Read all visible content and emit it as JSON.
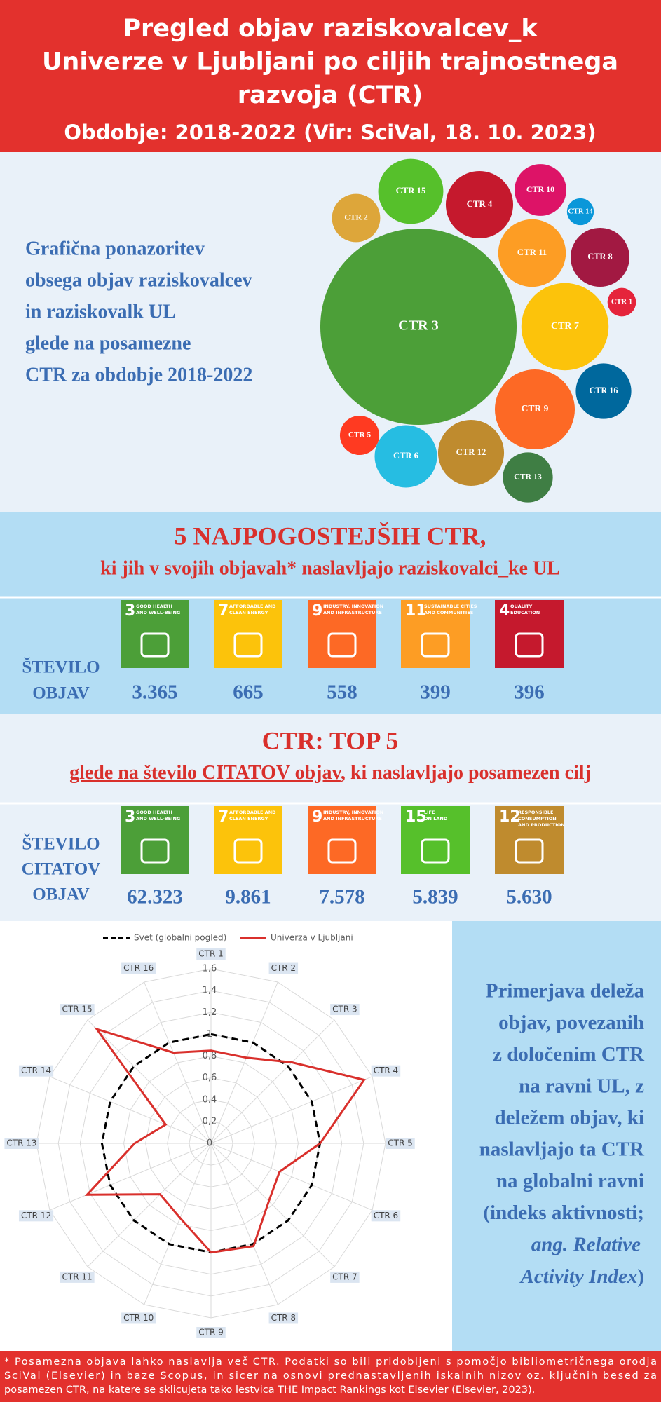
{
  "header": {
    "title_lines": [
      "Pregled objav raziskovalcev_k",
      "Univerze v Ljubljani po ciljih trajnostnega",
      "razvoja (CTR)"
    ],
    "subtitle": "Obdobje: 2018-2022 (Vir: SciVal, 18. 10. 2023)"
  },
  "bubble_text": [
    "Grafična ponazoritev",
    "obsega objav raziskovalcev",
    "in raziskovalk UL",
    "glede na posamezne",
    "CTR za obdobje 2018-2022"
  ],
  "chart_data": [
    {
      "type": "bubble",
      "categories": [
        "CTR 1",
        "CTR 2",
        "CTR 3",
        "CTR 4",
        "CTR 5",
        "CTR 6",
        "CTR 7",
        "CTR 8",
        "CTR 9",
        "CTR 10",
        "CTR 11",
        "CTR 12",
        "CTR 13",
        "CTR 14",
        "CTR 15",
        "CTR 16"
      ],
      "values": [
        71,
        203,
        3365,
        396,
        135,
        340,
        665,
        303,
        558,
        234,
        399,
        380,
        218,
        63,
        370,
        269
      ],
      "colors": [
        "#e5243b",
        "#dda63a",
        "#4c9f38",
        "#c5192d",
        "#ff3a21",
        "#26bde2",
        "#fcc30b",
        "#a21942",
        "#fd6925",
        "#dd1367",
        "#fd9d24",
        "#bf8b2e",
        "#3f7e44",
        "#0a97d9",
        "#56c02b",
        "#00689d"
      ]
    },
    {
      "type": "radar",
      "categories": [
        "CTR 1",
        "CTR 2",
        "CTR 3",
        "CTR 4",
        "CTR 5",
        "CTR 6",
        "CTR 7",
        "CTR 8",
        "CTR 9",
        "CTR 10",
        "CTR 11",
        "CTR 12",
        "CTR 13",
        "CTR 14",
        "CTR 15",
        "CTR 16"
      ],
      "ylim": [
        0,
        1.6
      ],
      "yticks": [
        0,
        {
          "value": 0.2,
          "label": "0,2"
        },
        {
          "value": 0.4,
          "label": "0,4"
        },
        {
          "value": 0.6,
          "label": "0,6"
        },
        {
          "value": 0.8,
          "label": "0,8"
        },
        1,
        {
          "value": 1.2,
          "label": "1,2"
        },
        {
          "value": 1.4,
          "label": "1,4"
        },
        {
          "value": 1.6,
          "label": "1,6"
        }
      ],
      "grid": true,
      "legend": "top",
      "series": [
        {
          "name": "Svet (globalni pogled)",
          "color": "#000000",
          "dashed": true,
          "values": [
            1,
            1,
            1,
            1,
            1,
            1,
            1,
            1,
            1,
            1,
            1,
            1,
            1,
            1,
            1,
            1
          ]
        },
        {
          "name": "Univerza v Ljubljani",
          "color": "#d9302c",
          "dashed": false,
          "values": [
            0.85,
            0.85,
            1.05,
            1.52,
            1.0,
            0.68,
            0.75,
            1.02,
            1.0,
            0.74,
            0.66,
            1.23,
            0.7,
            0.45,
            1.48,
            0.9
          ]
        }
      ]
    }
  ],
  "top_publications": {
    "heading": "5 NAJPOGOSTEJŠIH CTR,",
    "subheading": "ki jih v svojih objavah* naslavljajo raziskovalci_ke UL",
    "row_label": [
      "ŠTEVILO",
      "OBJAV"
    ],
    "goals": [
      {
        "number": "3",
        "name": [
          "GOOD HEALTH",
          "AND WELL-BEING"
        ],
        "color": "#4c9f38",
        "count": "3.365"
      },
      {
        "number": "7",
        "name": [
          "AFFORDABLE AND",
          "CLEAN ENERGY"
        ],
        "color": "#fcc30b",
        "count": "665"
      },
      {
        "number": "9",
        "name": [
          "INDUSTRY, INNOVATION",
          "AND INFRASTRUCTURE"
        ],
        "color": "#fd6925",
        "count": "558"
      },
      {
        "number": "11",
        "name": [
          "SUSTAINABLE CITIES",
          "AND COMMUNITIES"
        ],
        "color": "#fd9d24",
        "count": "399"
      },
      {
        "number": "4",
        "name": [
          "QUALITY",
          "EDUCATION"
        ],
        "color": "#c5192d",
        "count": "396"
      }
    ]
  },
  "top_citations": {
    "heading": "CTR: TOP 5",
    "subheading_underlined": "glede na število CITATOV objav",
    "subheading_rest": ", ki naslavljajo posamezen cilj",
    "row_label": [
      "ŠTEVILO",
      "CITATOV",
      "OBJAV"
    ],
    "goals": [
      {
        "number": "3",
        "name": [
          "GOOD HEALTH",
          "AND WELL-BEING"
        ],
        "color": "#4c9f38",
        "count": "62.323"
      },
      {
        "number": "7",
        "name": [
          "AFFORDABLE AND",
          "CLEAN ENERGY"
        ],
        "color": "#fcc30b",
        "count": "9.861"
      },
      {
        "number": "9",
        "name": [
          "INDUSTRY, INNOVATION",
          "AND INFRASTRUCTURE"
        ],
        "color": "#fd6925",
        "count": "7.578"
      },
      {
        "number": "15",
        "name": [
          "LIFE",
          "ON LAND"
        ],
        "color": "#56c02b",
        "count": "5.839"
      },
      {
        "number": "12",
        "name": [
          "RESPONSIBLE",
          "CONSUMPTION",
          "AND PRODUCTION"
        ],
        "color": "#bf8b2e",
        "count": "5.630"
      }
    ]
  },
  "comparison_text": {
    "lines": [
      "Primerjava deleža",
      "objav, povezanih",
      "z določenim CTR",
      "na ravni UL, z",
      "deležem objav, ki",
      "naslavljajo ta CTR",
      "na globalni ravni",
      "(indeks aktivnosti;"
    ],
    "italic_lines": [
      "ang. Relative",
      "Activity Index"
    ],
    "closing": ")"
  },
  "footnote": [
    "* Posamezna objava lahko naslavlja več CTR. Podatki so bili pridobljeni s pomočjo bibliometričnega orodja",
    "SciVal (Elsevier) in baze Scopus, in sicer na osnovi prednastavljenih iskalnih nizov oz. ključnih besed za",
    "posamezen CTR, na katere se sklicujeta tako lestvica THE Impact Rankings kot Elsevier (Elsevier, 2023)."
  ]
}
